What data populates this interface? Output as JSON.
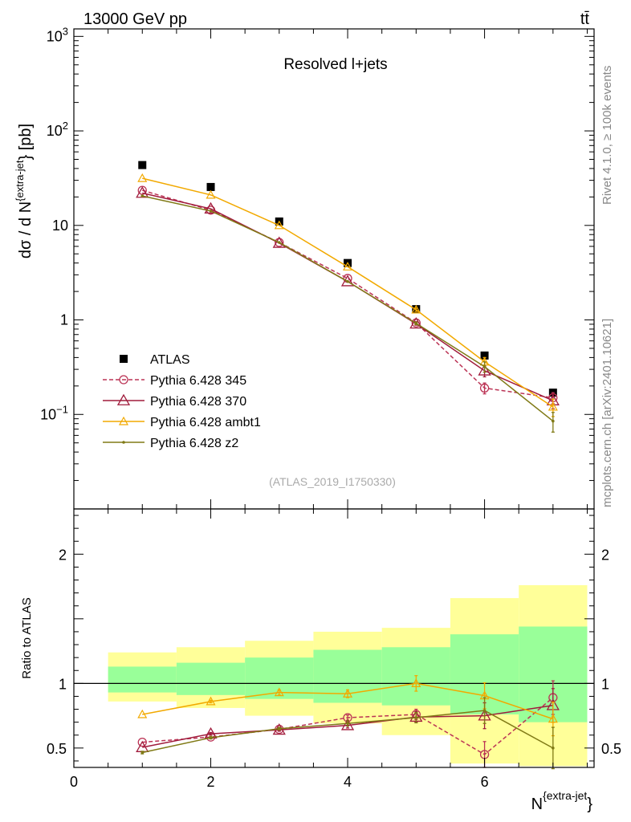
{
  "header": {
    "left": "13000 GeV pp",
    "right": "tt̄"
  },
  "side_text": {
    "rivet": "Rivet 4.1.0, ≥ 100k events",
    "mcplots": "mcplots.cern.ch [arXiv:2401.10621]"
  },
  "chart_data": [
    {
      "panel": "main",
      "type": "line",
      "title": "Resolved l+jets",
      "ylabel": "dσ / d N^{extra-jet} [pb]",
      "yscale": "log",
      "ylim": [
        0.01,
        1200
      ],
      "xlim": [
        0,
        7.6
      ],
      "ytick_labels": [
        {
          "value": 1000,
          "base": "10",
          "exp": "3"
        },
        {
          "value": 100,
          "base": "10",
          "exp": "2"
        },
        {
          "value": 10,
          "base": "10",
          "exp": ""
        },
        {
          "value": 1,
          "base": "1",
          "exp": ""
        },
        {
          "value": 0.1,
          "base": "10",
          "exp": "−1"
        }
      ],
      "watermark": "(ATLAS_2019_I1750330)",
      "x": [
        1,
        2,
        3,
        4,
        5,
        6,
        7
      ],
      "series": [
        {
          "name": "ATLAS",
          "style": "data",
          "color": "#000000",
          "values": [
            43.5,
            25.5,
            11.0,
            4.0,
            1.3,
            0.42,
            0.17
          ]
        },
        {
          "name": "Pythia 6.428 345",
          "style": "circle-dashed",
          "color": "#bb3355",
          "values": [
            23.5,
            14.5,
            6.6,
            2.75,
            0.93,
            0.19,
            0.15
          ],
          "errors": [
            0,
            0,
            0,
            0,
            0.03,
            0.025,
            0.02
          ]
        },
        {
          "name": "Pythia 6.428 370",
          "style": "triangle",
          "color": "#a01c3c",
          "values": [
            22.0,
            15.0,
            6.5,
            2.55,
            0.91,
            0.29,
            0.14
          ],
          "errors": [
            0,
            0,
            0,
            0,
            0.03,
            0.04,
            0.025
          ]
        },
        {
          "name": "Pythia 6.428 ambt1",
          "style": "triangle-small",
          "color": "#f2a900",
          "values": [
            31.5,
            21.0,
            10.0,
            3.65,
            1.28,
            0.36,
            0.12
          ],
          "errors": [
            0,
            0,
            0,
            0,
            0.05,
            0.04,
            0.025
          ]
        },
        {
          "name": "Pythia 6.428 z2",
          "style": "dot",
          "color": "#807a16",
          "values": [
            20.5,
            14.2,
            6.6,
            2.55,
            0.92,
            0.32,
            0.085
          ],
          "errors": [
            0,
            0,
            0,
            0,
            0.03,
            0.04,
            0.02
          ]
        }
      ]
    },
    {
      "panel": "ratio",
      "type": "line",
      "ylabel": "Ratio to ATLAS",
      "xlabel": "N^{extra-jet}",
      "ylim": [
        0.35,
        2.35
      ],
      "xlim": [
        0,
        7.6
      ],
      "ytick_labels": [
        "2",
        "1",
        "0.5"
      ],
      "xtick_labels": [
        "0",
        "2",
        "4",
        "6"
      ],
      "band_edges": [
        0.5,
        1.5,
        2.5,
        3.5,
        4.5,
        5.5,
        6.5,
        7.5
      ],
      "yellow_band": {
        "low": [
          0.86,
          0.81,
          0.75,
          0.69,
          0.6,
          0.38,
          0.36
        ],
        "high": [
          1.24,
          1.28,
          1.33,
          1.4,
          1.43,
          1.66,
          1.76
        ]
      },
      "green_band": {
        "low": [
          0.93,
          0.91,
          0.88,
          0.85,
          0.83,
          0.76,
          0.7
        ],
        "high": [
          1.13,
          1.16,
          1.2,
          1.26,
          1.28,
          1.38,
          1.44
        ]
      },
      "x": [
        1,
        2,
        3,
        4,
        5,
        6,
        7
      ],
      "series": [
        {
          "name": "Pythia 6.428 345",
          "style": "circle-dashed",
          "color": "#bb3355",
          "values": [
            0.545,
            0.585,
            0.645,
            0.735,
            0.76,
            0.45,
            0.89
          ],
          "errors": [
            0,
            0,
            0.01,
            0.02,
            0.04,
            0.1,
            0.13
          ]
        },
        {
          "name": "Pythia 6.428 370",
          "style": "triangle",
          "color": "#a01c3c",
          "values": [
            0.505,
            0.61,
            0.64,
            0.675,
            0.74,
            0.75,
            0.83
          ],
          "errors": [
            0,
            0.01,
            0.01,
            0.02,
            0.04,
            0.1,
            0.13
          ]
        },
        {
          "name": "Pythia 6.428 ambt1",
          "style": "triangle-small",
          "color": "#f2a900",
          "values": [
            0.76,
            0.86,
            0.93,
            0.92,
            1.0,
            0.905,
            0.725
          ],
          "errors": [
            0,
            0.01,
            0.02,
            0.03,
            0.06,
            0.1,
            0.13
          ]
        },
        {
          "name": "Pythia 6.428 z2",
          "style": "dot",
          "color": "#807a16",
          "values": [
            0.465,
            0.58,
            0.65,
            0.69,
            0.735,
            0.79,
            0.5
          ],
          "errors": [
            0.01,
            0.01,
            0.01,
            0.02,
            0.04,
            0.1,
            0.16
          ]
        }
      ]
    }
  ]
}
